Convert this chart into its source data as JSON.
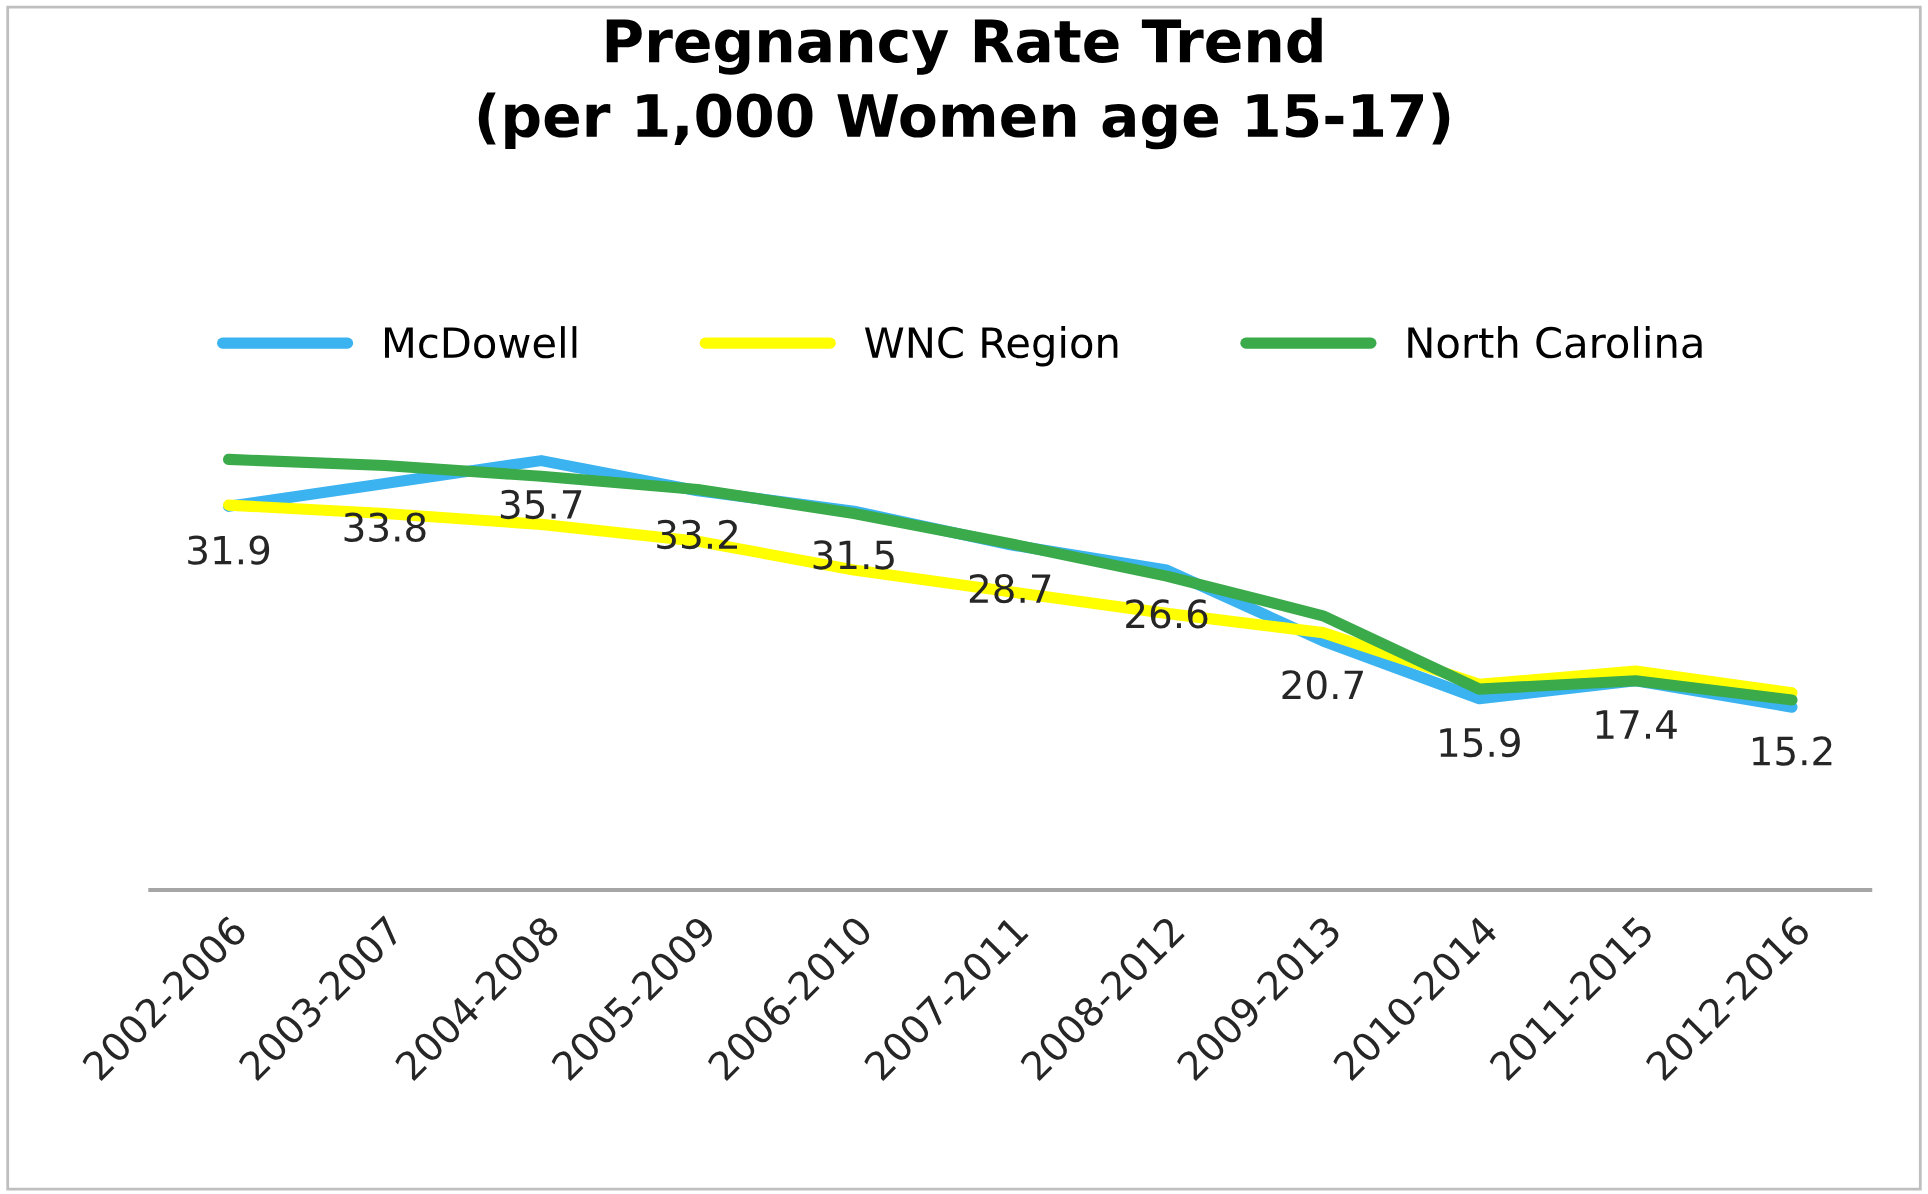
{
  "chart_data": {
    "type": "line",
    "title": "Pregnancy Rate Trend\n(per 1,000 Women age 15-17)",
    "categories": [
      "2002-2006",
      "2003-2007",
      "2004-2008",
      "2005-2009",
      "2006-2010",
      "2007-2011",
      "2008-2012",
      "2009-2013",
      "2010-2014",
      "2011-2015",
      "2012-2016"
    ],
    "series": [
      {
        "name": "McDowell",
        "color": "#3bb3f0",
        "values": [
          31.9,
          33.8,
          35.7,
          33.2,
          31.5,
          28.7,
          26.6,
          20.7,
          15.9,
          17.4,
          15.2
        ],
        "value_labels": [
          "31.9",
          "33.8",
          "35.7",
          "33.2",
          "31.5",
          "28.7",
          "26.6",
          "20.7",
          "15.9",
          "17.4",
          "15.2"
        ]
      },
      {
        "name": "WNC Region",
        "color": "#ffff00",
        "values": [
          32.0,
          31.3,
          30.4,
          29.0,
          26.6,
          24.8,
          23.0,
          21.4,
          17.1,
          18.2,
          16.4
        ]
      },
      {
        "name": "North Carolina",
        "color": "#3aaa4a",
        "values": [
          35.8,
          35.3,
          34.4,
          33.3,
          31.3,
          28.8,
          26.1,
          22.8,
          16.7,
          17.4,
          15.8
        ]
      }
    ],
    "legend": "top",
    "grid": false,
    "marker": "none",
    "line_style": "solid",
    "tick_labels": "x"
  }
}
